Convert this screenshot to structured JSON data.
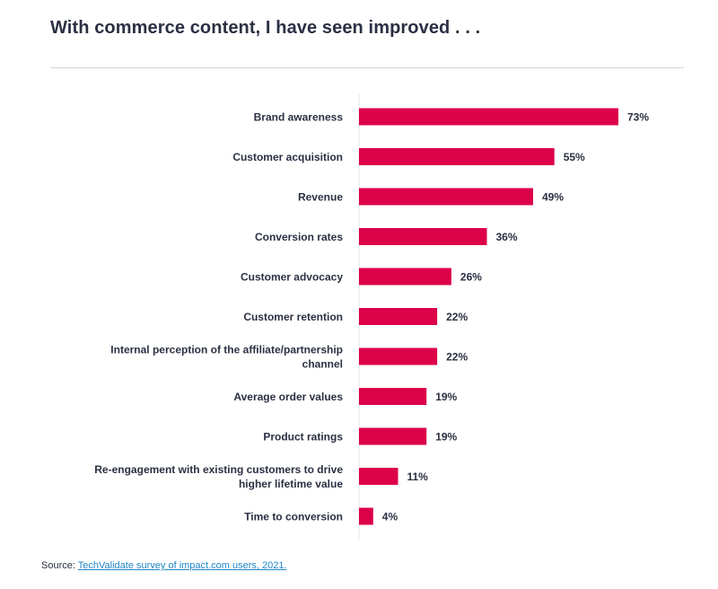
{
  "header": {
    "title": "With commerce content, I have seen improved . . ."
  },
  "colors": {
    "bar": "#dc0148",
    "text": "#2b3043",
    "axis": "#e3e3e8",
    "divider": "#d6d6db",
    "link": "#1f86c8"
  },
  "chart_data": {
    "type": "bar",
    "orientation": "horizontal",
    "title": "With commerce content, I have seen improved . . .",
    "categories": [
      [
        "Brand awareness"
      ],
      [
        "Customer acquisition"
      ],
      [
        "Revenue"
      ],
      [
        "Conversion rates"
      ],
      [
        "Customer advocacy"
      ],
      [
        "Customer retention"
      ],
      [
        "Internal perception of the affiliate/partnership",
        "channel"
      ],
      [
        "Average order values"
      ],
      [
        "Product ratings"
      ],
      [
        "Re-engagement with existing customers to drive",
        "higher lifetime value"
      ],
      [
        "Time to conversion"
      ]
    ],
    "values": [
      73,
      55,
      49,
      36,
      26,
      22,
      22,
      19,
      19,
      11,
      4
    ],
    "value_labels": [
      "73%",
      "55%",
      "49%",
      "36%",
      "26%",
      "22%",
      "22%",
      "19%",
      "19%",
      "11%",
      "4%"
    ],
    "xlabel": "",
    "ylabel": "",
    "xlim": [
      0,
      100
    ],
    "grid": false,
    "legend": "none"
  },
  "footer": {
    "source_prefix": "Source: ",
    "source_link": "TechValidate survey of impact.com users, 2021."
  }
}
